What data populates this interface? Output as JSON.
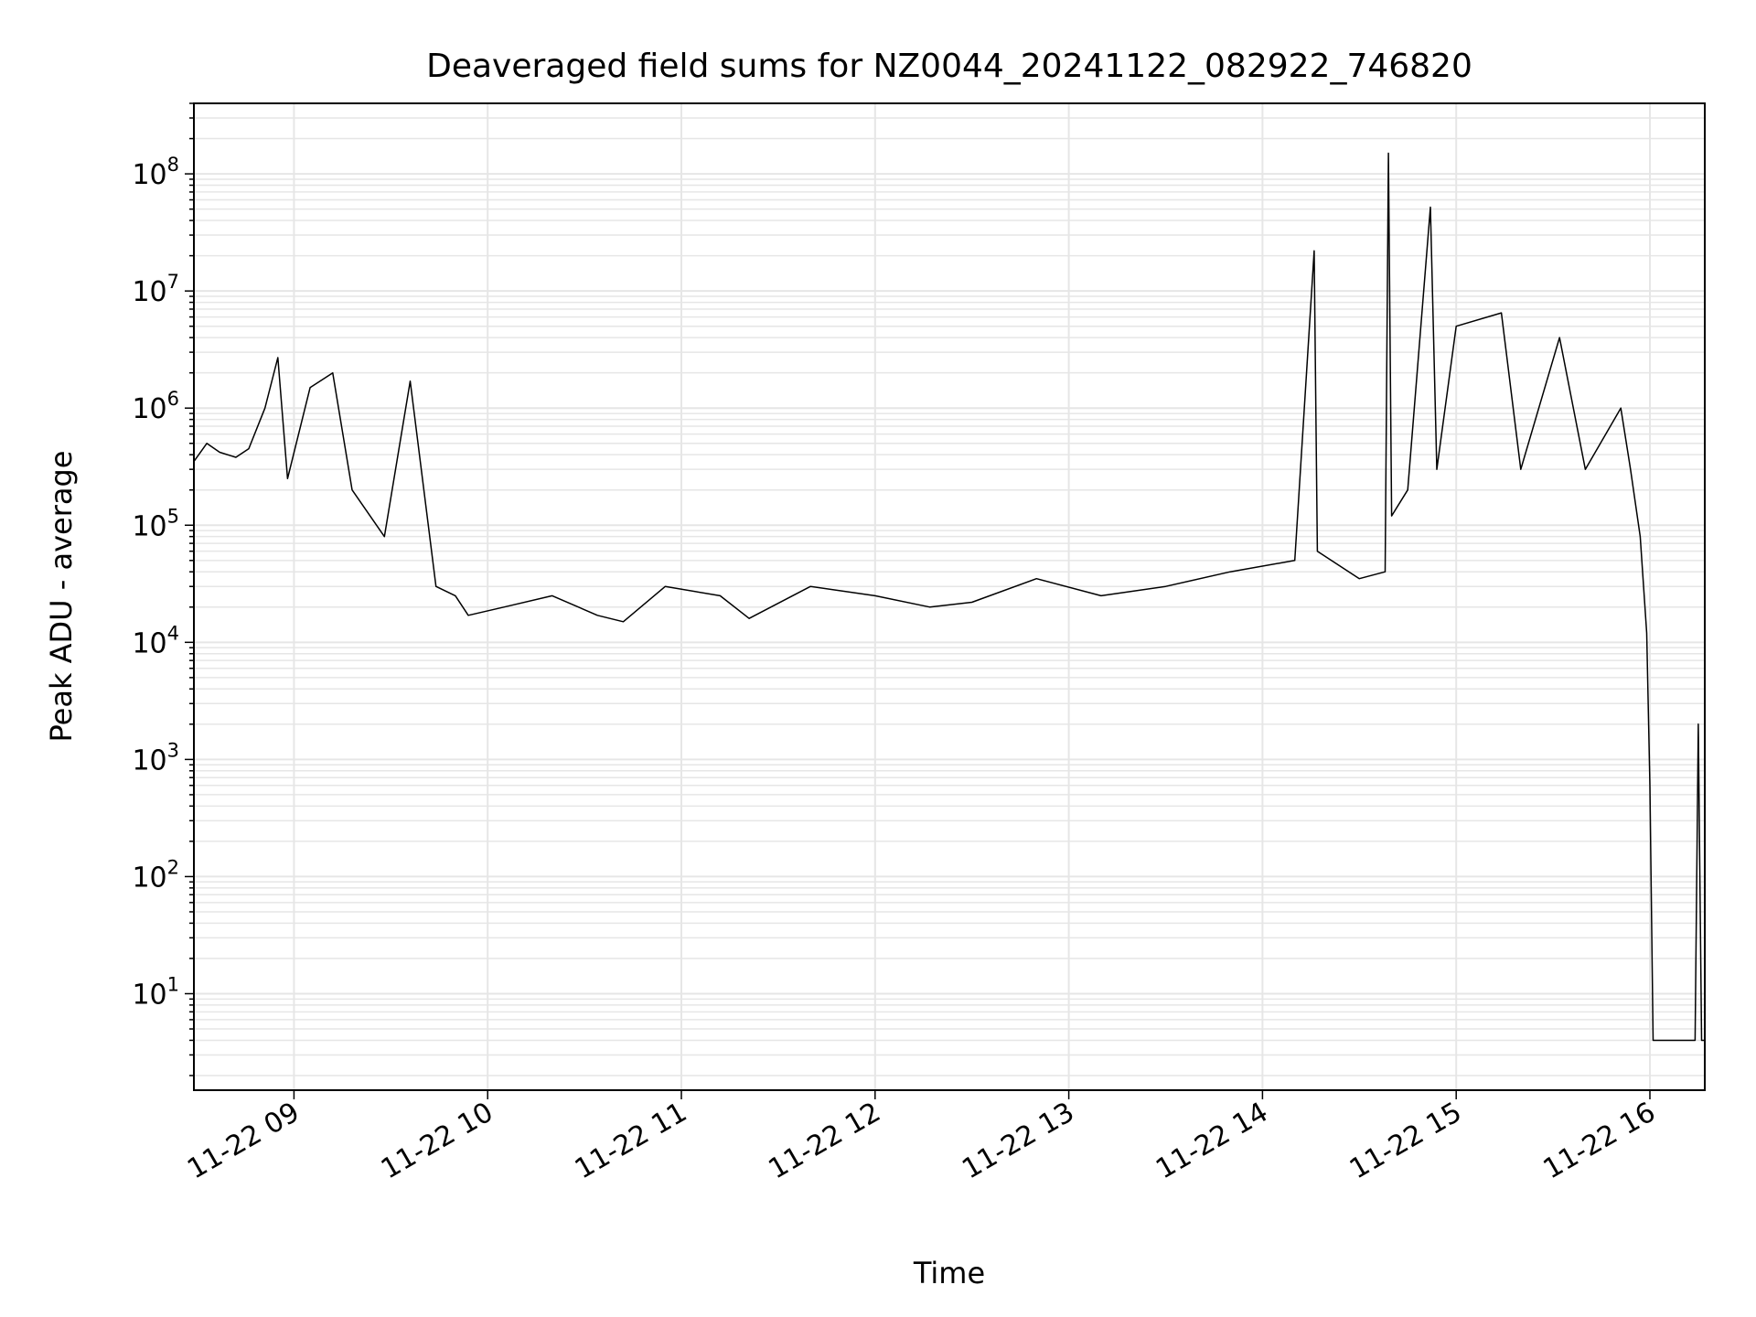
{
  "chart_data": {
    "type": "line",
    "title": "Deaveraged field sums for NZ0044_20241122_082922_746820",
    "xlabel": "Time",
    "ylabel": "Peak ADU - average",
    "y_scale": "log",
    "x_range": [
      "11-22 08:29",
      "11-22 16:17"
    ],
    "y_range": [
      1.5,
      400000000
    ],
    "grid": true,
    "line_color": "#000000",
    "grid_color": "#e6e6e6",
    "x_ticks": [
      "11-22 09",
      "11-22 10",
      "11-22 11",
      "11-22 12",
      "11-22 13",
      "11-22 14",
      "11-22 15",
      "11-22 16"
    ],
    "y_ticks": [
      {
        "base": "10",
        "exp": "1",
        "value": 10
      },
      {
        "base": "10",
        "exp": "2",
        "value": 100
      },
      {
        "base": "10",
        "exp": "3",
        "value": 1000
      },
      {
        "base": "10",
        "exp": "4",
        "value": 10000
      },
      {
        "base": "10",
        "exp": "5",
        "value": 100000
      },
      {
        "base": "10",
        "exp": "6",
        "value": 1000000
      },
      {
        "base": "10",
        "exp": "7",
        "value": 10000000
      },
      {
        "base": "10",
        "exp": "8",
        "value": 100000000
      }
    ],
    "series": [
      {
        "points": [
          [
            "11-22 08:29",
            350000
          ],
          [
            "11-22 08:33",
            500000
          ],
          [
            "11-22 08:37",
            420000
          ],
          [
            "11-22 08:42",
            380000
          ],
          [
            "11-22 08:46",
            450000
          ],
          [
            "11-22 08:51",
            1000000
          ],
          [
            "11-22 08:55",
            2700000
          ],
          [
            "11-22 08:58",
            250000
          ],
          [
            "11-22 09:05",
            1500000
          ],
          [
            "11-22 09:12",
            2000000
          ],
          [
            "11-22 09:18",
            200000
          ],
          [
            "11-22 09:28",
            80000
          ],
          [
            "11-22 09:36",
            1700000
          ],
          [
            "11-22 09:44",
            30000
          ],
          [
            "11-22 09:50",
            25000
          ],
          [
            "11-22 09:54",
            17000
          ],
          [
            "11-22 10:05",
            20000
          ],
          [
            "11-22 10:20",
            25000
          ],
          [
            "11-22 10:34",
            17000
          ],
          [
            "11-22 10:42",
            15000
          ],
          [
            "11-22 10:55",
            30000
          ],
          [
            "11-22 11:12",
            25000
          ],
          [
            "11-22 11:21",
            16000
          ],
          [
            "11-22 11:40",
            30000
          ],
          [
            "11-22 12:00",
            25000
          ],
          [
            "11-22 12:17",
            20000
          ],
          [
            "11-22 12:30",
            22000
          ],
          [
            "11-22 12:50",
            35000
          ],
          [
            "11-22 13:10",
            25000
          ],
          [
            "11-22 13:30",
            30000
          ],
          [
            "11-22 13:50",
            40000
          ],
          [
            "11-22 14:10",
            50000
          ],
          [
            "11-22 14:16",
            22000000
          ],
          [
            "11-22 14:17",
            60000
          ],
          [
            "11-22 14:30",
            35000
          ],
          [
            "11-22 14:38",
            40000
          ],
          [
            "11-22 14:39",
            150000000
          ],
          [
            "11-22 14:40",
            120000
          ],
          [
            "11-22 14:45",
            200000
          ],
          [
            "11-22 14:52",
            52000000
          ],
          [
            "11-22 14:54",
            300000
          ],
          [
            "11-22 15:00",
            5000000
          ],
          [
            "11-22 15:14",
            6500000
          ],
          [
            "11-22 15:20",
            300000
          ],
          [
            "11-22 15:32",
            4000000
          ],
          [
            "11-22 15:40",
            300000
          ],
          [
            "11-22 15:51",
            1000000
          ],
          [
            "11-22 15:54",
            300000
          ],
          [
            "11-22 15:57",
            80000
          ],
          [
            "11-22 15:59",
            12000
          ],
          [
            "11-22 16:00",
            600
          ],
          [
            "11-22 16:01",
            4
          ],
          [
            "11-22 16:14",
            4
          ],
          [
            "11-22 16:15",
            2000
          ],
          [
            "11-22 16:16",
            4
          ],
          [
            "11-22 16:17",
            4
          ]
        ]
      }
    ]
  }
}
